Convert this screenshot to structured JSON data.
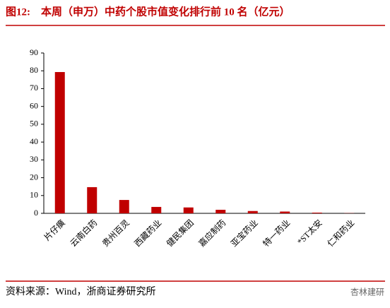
{
  "chart_data": {
    "type": "bar",
    "title": "图12:　本周（申万）中药个股市值变化排行前 10 名（亿元）",
    "categories": [
      "片仔癀",
      "云南白药",
      "贵州百灵",
      "西藏药业",
      "健民集团",
      "嘉应制药",
      "亚宝药业",
      "特一药业",
      "*ST太安",
      "仁和药业"
    ],
    "values": [
      79.3,
      14.7,
      7.5,
      3.6,
      3.3,
      2.0,
      1.3,
      1.0,
      0.4,
      0.1
    ],
    "color": "#c00000",
    "ylim": [
      0,
      90
    ],
    "yticks": [
      0,
      10,
      20,
      30,
      40,
      50,
      60,
      70,
      80,
      90
    ],
    "grid": false
  },
  "footer": {
    "source": "资料来源：Wind，浙商证券研究所",
    "watermark": "杏林建研"
  }
}
